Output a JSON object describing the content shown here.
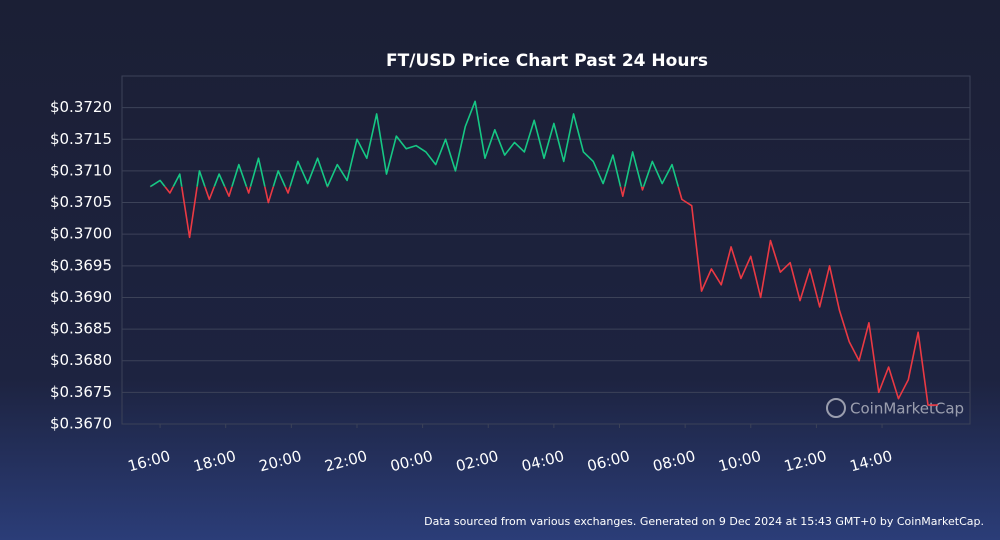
{
  "chart_data": {
    "type": "line",
    "title": "FT/USD Price Chart Past 24 Hours",
    "source": "Data sourced from various exchanges. Generated on 9 Dec 2024 at 15:43 GMT+0 by CoinMarketCap.",
    "watermark": "CoinMarketCap",
    "up_color": "#16c784",
    "down_color": "#ea3943",
    "xlim": [
      14.84,
      40.68
    ],
    "ylim": [
      0.367,
      0.3725
    ],
    "xticks": [
      {
        "value": 16,
        "label": "16:00"
      },
      {
        "value": 18,
        "label": "18:00"
      },
      {
        "value": 20,
        "label": "20:00"
      },
      {
        "value": 22,
        "label": "22:00"
      },
      {
        "value": 24,
        "label": "00:00"
      },
      {
        "value": 26,
        "label": "02:00"
      },
      {
        "value": 28,
        "label": "04:00"
      },
      {
        "value": 30,
        "label": "06:00"
      },
      {
        "value": 32,
        "label": "08:00"
      },
      {
        "value": 34,
        "label": "10:00"
      },
      {
        "value": 36,
        "label": "12:00"
      },
      {
        "value": 38,
        "label": "14:00"
      }
    ],
    "yticks": [
      {
        "value": 0.367,
        "label": "$0.3670"
      },
      {
        "value": 0.3675,
        "label": "$0.3675"
      },
      {
        "value": 0.368,
        "label": "$0.3680"
      },
      {
        "value": 0.3685,
        "label": "$0.3685"
      },
      {
        "value": 0.369,
        "label": "$0.3690"
      },
      {
        "value": 0.3695,
        "label": "$0.3695"
      },
      {
        "value": 0.37,
        "label": "$0.3700"
      },
      {
        "value": 0.3705,
        "label": "$0.3705"
      },
      {
        "value": 0.371,
        "label": "$0.3710"
      },
      {
        "value": 0.3715,
        "label": "$0.3715"
      },
      {
        "value": 0.372,
        "label": "$0.3720"
      }
    ],
    "x": [
      15.7,
      16.0,
      16.3,
      16.6,
      16.9,
      17.2,
      17.5,
      17.8,
      18.1,
      18.4,
      18.7,
      19.0,
      19.3,
      19.6,
      19.9,
      20.2,
      20.5,
      20.8,
      21.1,
      21.4,
      21.7,
      22.0,
      22.3,
      22.6,
      22.9,
      23.2,
      23.5,
      23.8,
      24.1,
      24.4,
      24.7,
      25.0,
      25.3,
      25.6,
      25.9,
      26.2,
      26.5,
      26.8,
      27.1,
      27.4,
      27.7,
      28.0,
      28.3,
      28.6,
      28.9,
      29.2,
      29.5,
      29.8,
      30.1,
      30.4,
      30.7,
      31.0,
      31.3,
      31.6,
      31.9,
      32.2,
      32.5,
      32.8,
      33.1,
      33.4,
      33.7,
      34.0,
      34.3,
      34.6,
      34.9,
      35.2,
      35.5,
      35.8,
      36.1,
      36.4,
      36.7,
      37.0,
      37.3,
      37.6,
      37.9,
      38.2,
      38.5,
      38.8,
      39.1,
      39.4,
      39.7
    ],
    "series": [
      {
        "name": "FT/USD",
        "values": [
          0.37075,
          0.37085,
          0.37065,
          0.37095,
          0.36995,
          0.371,
          0.37055,
          0.37095,
          0.3706,
          0.3711,
          0.37065,
          0.3712,
          0.3705,
          0.371,
          0.37065,
          0.37115,
          0.3708,
          0.3712,
          0.37075,
          0.3711,
          0.37085,
          0.3715,
          0.3712,
          0.3719,
          0.37095,
          0.37155,
          0.37135,
          0.3714,
          0.3713,
          0.3711,
          0.3715,
          0.371,
          0.3717,
          0.3721,
          0.3712,
          0.37165,
          0.37125,
          0.37145,
          0.3713,
          0.3718,
          0.3712,
          0.37175,
          0.37115,
          0.3719,
          0.3713,
          0.37115,
          0.3708,
          0.37125,
          0.3706,
          0.3713,
          0.3707,
          0.37115,
          0.3708,
          0.3711,
          0.37055,
          0.37045,
          0.3691,
          0.36945,
          0.3692,
          0.3698,
          0.3693,
          0.36965,
          0.369,
          0.3699,
          0.3694,
          0.36955,
          0.36895,
          0.36945,
          0.36885,
          0.3695,
          0.3688,
          0.3683,
          0.368,
          0.3686,
          0.3675,
          0.3679,
          0.3674,
          0.3677,
          0.36845,
          0.3673,
          0.3673
        ]
      }
    ]
  }
}
